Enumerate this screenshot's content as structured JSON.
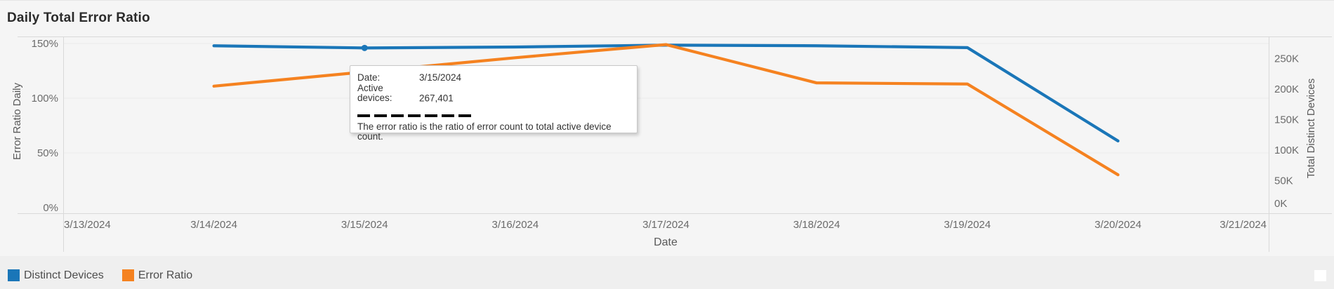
{
  "title": "Daily Total Error Ratio",
  "axes": {
    "x": {
      "title": "Date",
      "categories": [
        "3/13/2024",
        "3/14/2024",
        "3/15/2024",
        "3/16/2024",
        "3/17/2024",
        "3/18/2024",
        "3/19/2024",
        "3/20/2024",
        "3/21/2024"
      ]
    },
    "left": {
      "title": "Error Ratio Daily",
      "ticks": [
        {
          "label": "0%",
          "value": 0
        },
        {
          "label": "50%",
          "value": 50
        },
        {
          "label": "100%",
          "value": 100
        },
        {
          "label": "150%",
          "value": 150
        }
      ]
    },
    "right": {
      "title": "Total Distinct Devices",
      "ticks": [
        {
          "label": "0K",
          "value": 0
        },
        {
          "label": "50K",
          "value": 50000
        },
        {
          "label": "100K",
          "value": 100000
        },
        {
          "label": "150K",
          "value": 150000
        },
        {
          "label": "200K",
          "value": 200000
        },
        {
          "label": "250K",
          "value": 250000
        }
      ]
    }
  },
  "chart_data": {
    "type": "line",
    "title": "Daily Total Error Ratio",
    "xlabel": "Date",
    "ylabel_left": "Error Ratio Daily",
    "ylabel_right": "Total Distinct Devices",
    "categories": [
      "3/13/2024",
      "3/14/2024",
      "3/15/2024",
      "3/16/2024",
      "3/17/2024",
      "3/18/2024",
      "3/19/2024",
      "3/20/2024",
      "3/21/2024"
    ],
    "series": [
      {
        "name": "Distinct Devices",
        "axis": "right",
        "unit": "devices",
        "color": "#1a76b8",
        "values": [
          null,
          271000,
          267401,
          269000,
          272000,
          271000,
          268000,
          115000,
          null
        ]
      },
      {
        "name": "Error Ratio",
        "axis": "left",
        "unit": "percent",
        "color": "#f58220",
        "values": [
          null,
          111,
          124,
          137,
          149,
          114,
          113,
          30,
          null
        ]
      }
    ],
    "ylim_left": [
      0,
      150
    ],
    "ylim_right": [
      0,
      250000
    ],
    "grid": "horizontal-left-axis-ticks",
    "legend_position": "bottom-left",
    "highlight_point": {
      "series": "Distinct Devices",
      "category": "3/15/2024"
    }
  },
  "tooltip": {
    "rows": [
      {
        "label": "Date:",
        "value": "3/15/2024"
      },
      {
        "label": "Active devices:",
        "value": "267,401"
      }
    ],
    "note": "The error ratio is the ratio of error count to total active device count."
  },
  "legend": {
    "items": [
      {
        "label": "Distinct Devices",
        "color": "#1a76b8"
      },
      {
        "label": "Error Ratio",
        "color": "#f58220"
      }
    ]
  },
  "colors": {
    "blue_series": "#1a76b8",
    "orange_series": "#f58220",
    "axis_line": "#d9d9d9",
    "gridline": "#ececec",
    "tick_text": "#6b6b6b",
    "axis_title_text": "#595959",
    "background": "#f5f5f5",
    "legend_background": "#efefef"
  }
}
